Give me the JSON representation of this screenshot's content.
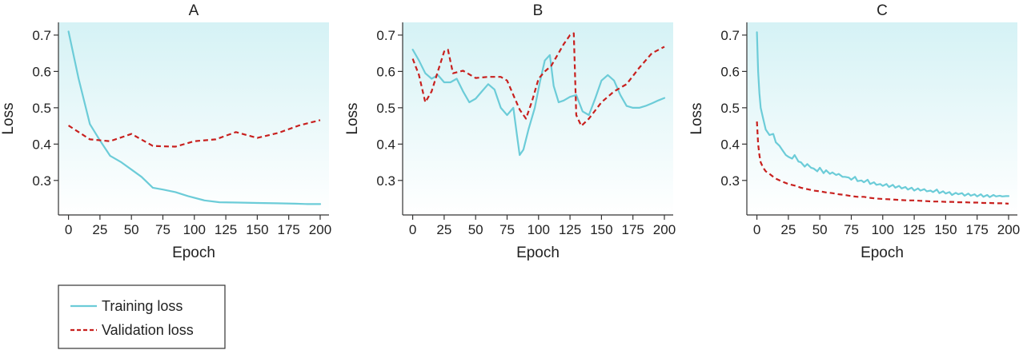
{
  "colors": {
    "training": "#6cccd8",
    "validation": "#c8201e",
    "plot_bg_top": "#d5f2f5",
    "plot_bg_bottom": "#ffffff",
    "axis": "#333333"
  },
  "legend": {
    "placement": "bottom-left",
    "items": [
      {
        "label": "Training loss",
        "color": "#6cccd8",
        "style": "solid"
      },
      {
        "label": "Validation loss",
        "color": "#c8201e",
        "style": "dashed"
      }
    ]
  },
  "chart_data": [
    {
      "type": "line",
      "title": "A",
      "xlabel": "Epoch",
      "ylabel": "Loss",
      "xlim": [
        -8,
        207
      ],
      "ylim": [
        0.205,
        0.735
      ],
      "xticks": [
        0,
        25,
        50,
        75,
        100,
        125,
        150,
        175,
        200
      ],
      "yticks": [
        0.3,
        0.4,
        0.5,
        0.6,
        0.7
      ],
      "grid": false,
      "series": [
        {
          "name": "Training loss",
          "style": "solid",
          "x": [
            0,
            8,
            17,
            25,
            33,
            42,
            50,
            58,
            67,
            75,
            85,
            95,
            108,
            120,
            135,
            150,
            165,
            180,
            190,
            200
          ],
          "y": [
            0.71,
            0.58,
            0.455,
            0.41,
            0.368,
            0.35,
            0.33,
            0.31,
            0.28,
            0.275,
            0.268,
            0.257,
            0.245,
            0.24,
            0.239,
            0.238,
            0.237,
            0.236,
            0.235,
            0.235
          ]
        },
        {
          "name": "Validation loss",
          "style": "dashed",
          "x": [
            0,
            17,
            33,
            50,
            67,
            75,
            85,
            100,
            117,
            133,
            150,
            167,
            183,
            200
          ],
          "y": [
            0.451,
            0.413,
            0.408,
            0.428,
            0.395,
            0.394,
            0.393,
            0.408,
            0.413,
            0.433,
            0.417,
            0.431,
            0.451,
            0.466
          ]
        }
      ]
    },
    {
      "type": "line",
      "title": "B",
      "xlabel": "Epoch",
      "ylabel": "Loss",
      "xlim": [
        -8,
        207
      ],
      "ylim": [
        0.205,
        0.735
      ],
      "xticks": [
        0,
        25,
        50,
        75,
        100,
        125,
        150,
        175,
        200
      ],
      "yticks": [
        0.3,
        0.4,
        0.5,
        0.6,
        0.7
      ],
      "grid": false,
      "series": [
        {
          "name": "Training loss",
          "style": "solid",
          "x": [
            0,
            5,
            10,
            15,
            20,
            25,
            30,
            35,
            40,
            45,
            50,
            55,
            60,
            65,
            70,
            75,
            80,
            83,
            85,
            88,
            92,
            97,
            101,
            105,
            109,
            112,
            116,
            120,
            125,
            130,
            135,
            140,
            145,
            150,
            155,
            160,
            165,
            170,
            175,
            180,
            185,
            190,
            195,
            200
          ],
          "y": [
            0.66,
            0.63,
            0.595,
            0.58,
            0.59,
            0.57,
            0.57,
            0.58,
            0.545,
            0.515,
            0.525,
            0.545,
            0.565,
            0.55,
            0.5,
            0.48,
            0.5,
            0.42,
            0.37,
            0.385,
            0.44,
            0.5,
            0.57,
            0.63,
            0.645,
            0.56,
            0.515,
            0.52,
            0.53,
            0.535,
            0.49,
            0.48,
            0.525,
            0.575,
            0.59,
            0.575,
            0.535,
            0.505,
            0.5,
            0.5,
            0.505,
            0.512,
            0.52,
            0.527
          ]
        },
        {
          "name": "Validation loss",
          "style": "dashed",
          "x": [
            0,
            5,
            10,
            15,
            20,
            25,
            28,
            32,
            40,
            50,
            60,
            70,
            75,
            80,
            85,
            90,
            95,
            100,
            105,
            110,
            115,
            120,
            125,
            128,
            130,
            134,
            140,
            150,
            160,
            170,
            180,
            190,
            200
          ],
          "y": [
            0.635,
            0.59,
            0.515,
            0.545,
            0.6,
            0.655,
            0.66,
            0.595,
            0.602,
            0.582,
            0.585,
            0.585,
            0.575,
            0.535,
            0.495,
            0.47,
            0.52,
            0.58,
            0.6,
            0.615,
            0.645,
            0.675,
            0.7,
            0.705,
            0.48,
            0.45,
            0.47,
            0.515,
            0.545,
            0.565,
            0.61,
            0.65,
            0.668
          ]
        }
      ]
    },
    {
      "type": "line",
      "title": "C",
      "xlabel": "Epoch",
      "ylabel": "Loss",
      "xlim": [
        -8,
        207
      ],
      "ylim": [
        0.205,
        0.735
      ],
      "xticks": [
        0,
        25,
        50,
        75,
        100,
        125,
        150,
        175,
        200
      ],
      "yticks": [
        0.3,
        0.4,
        0.5,
        0.6,
        0.7
      ],
      "grid": false,
      "series": [
        {
          "name": "Training loss",
          "style": "solid",
          "x": [
            0,
            1,
            2,
            3,
            5,
            7,
            10,
            13,
            15,
            18,
            20,
            23,
            25,
            28,
            30,
            33,
            35,
            38,
            40,
            43,
            45,
            48,
            50,
            53,
            55,
            58,
            60,
            63,
            65,
            68,
            70,
            73,
            75,
            78,
            80,
            83,
            85,
            88,
            90,
            93,
            95,
            98,
            100,
            103,
            105,
            108,
            110,
            113,
            115,
            118,
            120,
            123,
            125,
            128,
            130,
            133,
            135,
            138,
            140,
            143,
            145,
            148,
            150,
            153,
            155,
            158,
            160,
            163,
            165,
            168,
            170,
            173,
            175,
            178,
            180,
            183,
            185,
            188,
            190,
            193,
            195,
            198,
            200
          ],
          "y": [
            0.708,
            0.6,
            0.54,
            0.5,
            0.47,
            0.44,
            0.425,
            0.428,
            0.405,
            0.395,
            0.385,
            0.37,
            0.365,
            0.36,
            0.37,
            0.352,
            0.35,
            0.338,
            0.345,
            0.335,
            0.333,
            0.325,
            0.335,
            0.32,
            0.328,
            0.318,
            0.322,
            0.315,
            0.318,
            0.31,
            0.31,
            0.308,
            0.302,
            0.31,
            0.298,
            0.3,
            0.295,
            0.302,
            0.29,
            0.295,
            0.288,
            0.29,
            0.285,
            0.29,
            0.282,
            0.288,
            0.28,
            0.285,
            0.278,
            0.282,
            0.275,
            0.28,
            0.272,
            0.278,
            0.272,
            0.276,
            0.27,
            0.272,
            0.268,
            0.275,
            0.265,
            0.27,
            0.264,
            0.268,
            0.26,
            0.266,
            0.262,
            0.265,
            0.258,
            0.264,
            0.258,
            0.262,
            0.256,
            0.262,
            0.255,
            0.26,
            0.254,
            0.26,
            0.256,
            0.258,
            0.256,
            0.257,
            0.257
          ]
        },
        {
          "name": "Validation loss",
          "style": "dashed",
          "x": [
            0,
            1,
            2,
            3,
            5,
            7,
            10,
            13,
            15,
            20,
            25,
            30,
            35,
            40,
            45,
            50,
            55,
            60,
            65,
            70,
            75,
            80,
            85,
            90,
            95,
            100,
            105,
            110,
            115,
            120,
            125,
            130,
            135,
            140,
            145,
            150,
            155,
            160,
            165,
            170,
            175,
            180,
            185,
            190,
            195,
            200
          ],
          "y": [
            0.462,
            0.4,
            0.37,
            0.35,
            0.335,
            0.325,
            0.318,
            0.31,
            0.305,
            0.297,
            0.29,
            0.286,
            0.28,
            0.276,
            0.272,
            0.27,
            0.267,
            0.265,
            0.262,
            0.26,
            0.257,
            0.255,
            0.255,
            0.252,
            0.25,
            0.249,
            0.248,
            0.247,
            0.246,
            0.245,
            0.245,
            0.244,
            0.243,
            0.242,
            0.242,
            0.241,
            0.241,
            0.24,
            0.24,
            0.239,
            0.239,
            0.238,
            0.238,
            0.237,
            0.237,
            0.236
          ]
        }
      ]
    }
  ]
}
